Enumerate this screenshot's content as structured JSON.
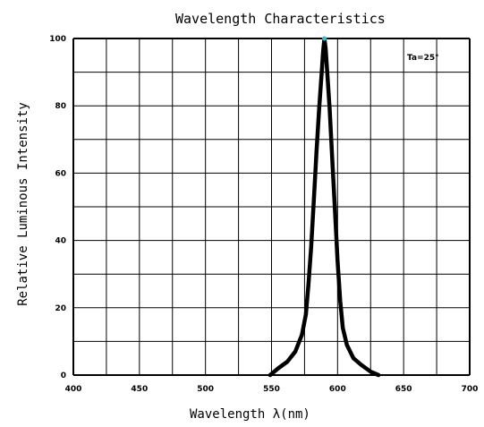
{
  "chart_data": {
    "type": "line",
    "title": "Wavelength Characteristics",
    "xlabel": "Wavelength λ(nm)",
    "ylabel": "Relative Luminous Intensity",
    "xlim": [
      400,
      700
    ],
    "ylim": [
      0,
      100
    ],
    "xticks": [
      400,
      450,
      500,
      550,
      600,
      650,
      700
    ],
    "xtick_labels": [
      "400",
      "450",
      "500",
      "550",
      "600",
      "650",
      "700"
    ],
    "yticks": [
      0,
      20,
      40,
      60,
      80,
      100
    ],
    "ytick_labels": [
      "0",
      "20",
      "40",
      "60",
      "80",
      "100"
    ],
    "grid": true,
    "annotation": "Ta=25°",
    "series": [
      {
        "color": "#000000",
        "x": [
          549,
          555,
          562,
          568,
          573,
          576,
          578,
          580,
          582,
          584,
          586,
          588,
          589,
          590,
          591,
          592,
          594,
          596,
          598,
          600,
          602,
          604,
          607,
          612,
          618,
          625,
          631
        ],
        "y": [
          0,
          2,
          4,
          7,
          12,
          18,
          27,
          38,
          52,
          66,
          79,
          90,
          96,
          100,
          97,
          91,
          79,
          64,
          49,
          34,
          22,
          14,
          9,
          5,
          3,
          1,
          0
        ]
      }
    ],
    "peak_marker": {
      "x": 590,
      "y": 100,
      "color": "#29c5d6"
    }
  }
}
